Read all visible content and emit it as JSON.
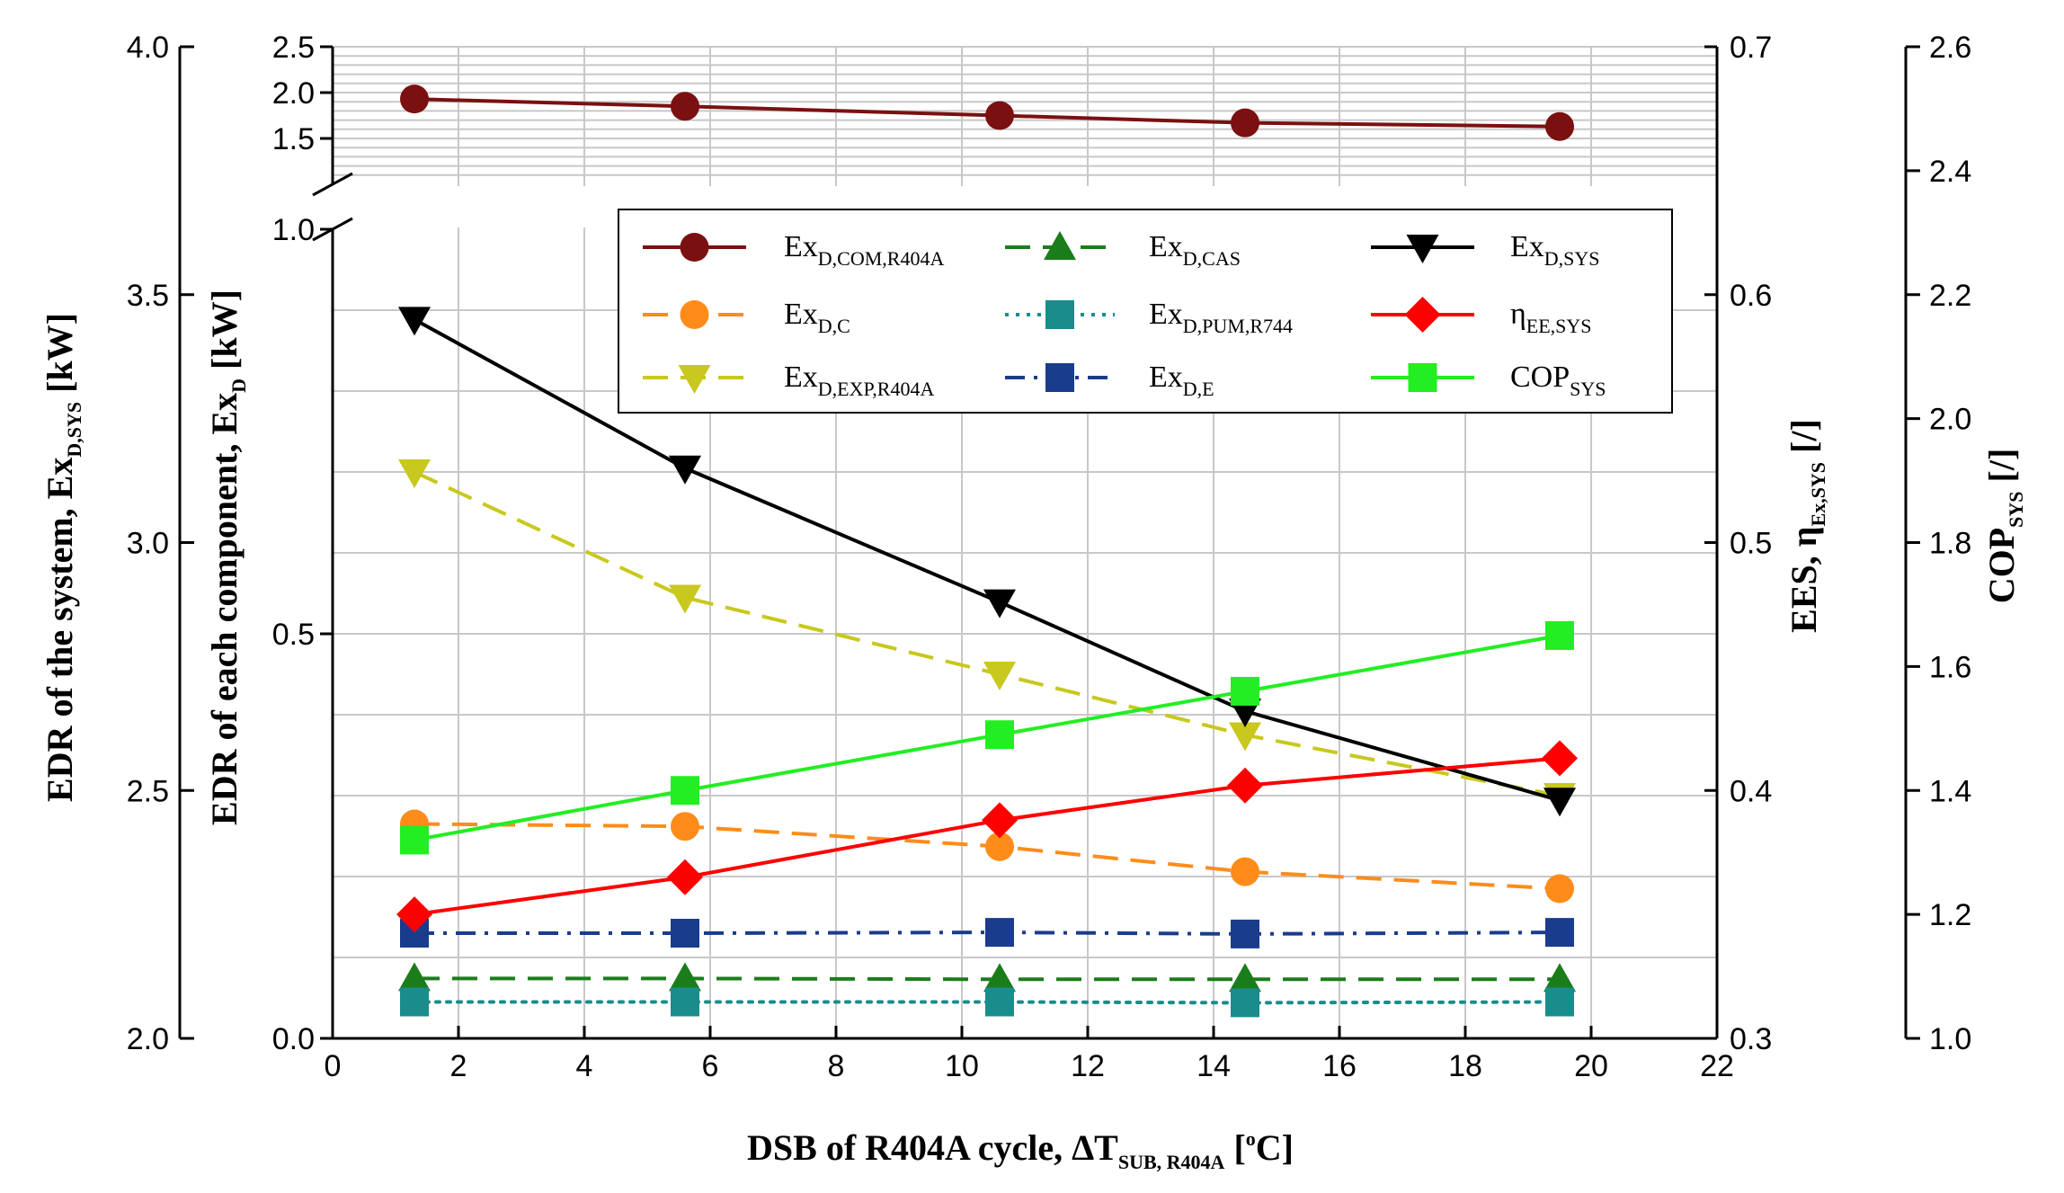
{
  "chart_data": {
    "type": "line",
    "x": [
      1.3,
      5.6,
      10.6,
      14.5,
      19.5
    ],
    "xlabel": {
      "main": "DSB of R404A cycle, ΔT",
      "sub": "SUB, R404A",
      "unit_pre": " [",
      "unit_sup": "o",
      "unit_post": "C]"
    },
    "xlim": [
      0,
      22
    ],
    "x_ticks": [
      "0",
      "2",
      "4",
      "6",
      "8",
      "10",
      "12",
      "14",
      "16",
      "18",
      "20",
      "22"
    ],
    "axes": {
      "system": {
        "label_main": "EDR of the system, Ex",
        "label_sub": "D,SYS",
        "label_unit": " [kW]",
        "range": [
          2.0,
          4.0
        ],
        "ticks": [
          "2.0",
          "2.5",
          "3.0",
          "3.5",
          "4.0"
        ]
      },
      "component": {
        "label_main": "EDR of each component, Ex",
        "label_sub": "D",
        "label_unit": " [kW]",
        "lower_range": [
          0.0,
          1.0
        ],
        "lower_ticks": [
          "0.0",
          "0.5",
          "1.0"
        ],
        "upper_range": [
          1.0,
          2.5
        ],
        "upper_ticks": [
          "1.5",
          "2.0",
          "2.5"
        ]
      },
      "ees": {
        "label_main": "EES, η",
        "label_sub": "Ex,SYS",
        "label_unit": " [/]",
        "range": [
          0.3,
          0.7
        ],
        "ticks": [
          "0.3",
          "0.4",
          "0.5",
          "0.6",
          "0.7"
        ]
      },
      "cop": {
        "label_main": "COP",
        "label_sub": "SYS",
        "label_unit": " [/]",
        "range": [
          1.0,
          2.6
        ],
        "ticks": [
          "1.0",
          "1.2",
          "1.4",
          "1.6",
          "1.8",
          "2.0",
          "2.2",
          "2.4",
          "2.6"
        ]
      }
    },
    "series": [
      {
        "name": "Ex",
        "sub": "D,COM,R404A",
        "axis": "component",
        "color": "#7b1010",
        "marker": "circle",
        "dash": "solid",
        "values": [
          1.93,
          1.85,
          1.75,
          1.67,
          1.63
        ]
      },
      {
        "name": "Ex",
        "sub": "D,C",
        "axis": "component",
        "color": "#ff8c1a",
        "marker": "circle",
        "dash": "dashed",
        "values": [
          0.265,
          0.262,
          0.237,
          0.206,
          0.185
        ]
      },
      {
        "name": "Ex",
        "sub": "D,EXP,R404A",
        "axis": "component",
        "color": "#c8c81e",
        "marker": "triangle-down",
        "dash": "dashed",
        "values": [
          0.7,
          0.545,
          0.45,
          0.375,
          0.3
        ]
      },
      {
        "name": "Ex",
        "sub": "D,CAS",
        "axis": "component",
        "color": "#1a7d1a",
        "marker": "triangle-up",
        "dash": "dashed",
        "values": [
          0.074,
          0.074,
          0.073,
          0.073,
          0.073
        ]
      },
      {
        "name": "Ex",
        "sub": "D,PUM,R744",
        "axis": "component",
        "color": "#1a8c8c",
        "marker": "square",
        "dash": "dotted",
        "values": [
          0.045,
          0.045,
          0.045,
          0.044,
          0.045
        ]
      },
      {
        "name": "Ex",
        "sub": "D,E",
        "axis": "component",
        "color": "#1a3c8c",
        "marker": "square",
        "dash": "dashdot",
        "values": [
          0.13,
          0.13,
          0.131,
          0.129,
          0.131
        ]
      },
      {
        "name": "Ex",
        "sub": "D,SYS",
        "axis": "system",
        "color": "#000000",
        "marker": "triangle-down",
        "dash": "solid",
        "values": [
          3.45,
          3.15,
          2.88,
          2.66,
          2.48
        ]
      },
      {
        "name": "η",
        "sub": "EE,SYS",
        "axis": "ees",
        "color": "#ff0000",
        "marker": "diamond",
        "dash": "solid",
        "values": [
          0.35,
          0.365,
          0.388,
          0.402,
          0.413
        ]
      },
      {
        "name": "COP",
        "sub": "SYS",
        "axis": "cop",
        "color": "#22ee22",
        "marker": "square",
        "dash": "solid",
        "values": [
          1.32,
          1.4,
          1.49,
          1.56,
          1.65
        ]
      }
    ],
    "legend_position": "top-center",
    "grid": true
  }
}
